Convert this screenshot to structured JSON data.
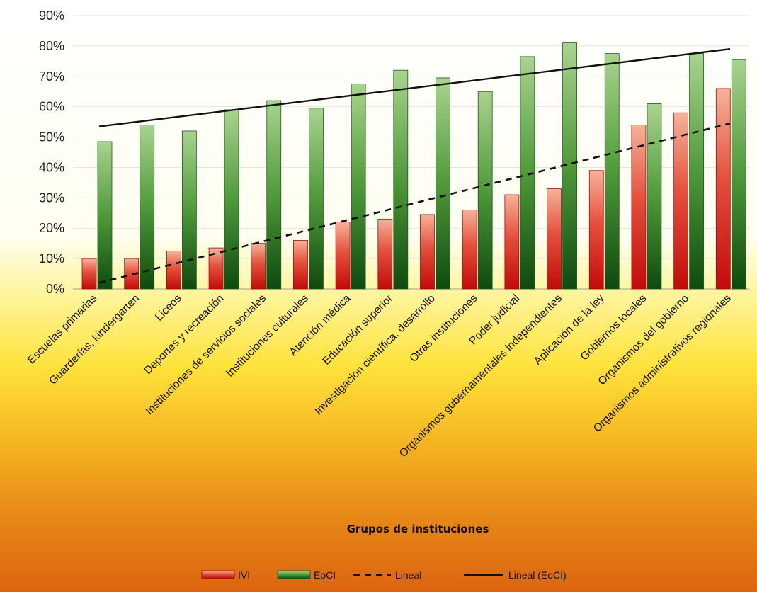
{
  "chart_data": {
    "type": "bar",
    "xlabel": "Grupos de instituciones",
    "ylabel": "",
    "ylim": [
      0,
      90
    ],
    "yticks": [
      0,
      10,
      20,
      30,
      40,
      50,
      60,
      70,
      80,
      90
    ],
    "ytick_suffix": "%",
    "grid": true,
    "legend_position": "bottom",
    "categories": [
      "Escuelas primarias",
      "Guarderías, kindergarten",
      "Liceos",
      "Deportes y recreación",
      "Instituciones de servicios sociales",
      "Instituciones culturales",
      "Atención médica",
      "Educación superior",
      "Investigación científica, desarrollo",
      "Otras instituciones",
      "Poder judicial",
      "Organismos gubernamentales independientes",
      "Aplicación de la ley",
      "Gobiernos locales",
      "Organismos del gobierno",
      "Organismos administrativos regionales"
    ],
    "series": [
      {
        "name": "IVI",
        "color": "#d42020",
        "values": [
          10,
          10,
          12.5,
          13.5,
          15,
          16,
          22,
          23,
          24.5,
          26,
          31,
          33,
          39,
          54,
          58,
          66
        ]
      },
      {
        "name": "EoCI",
        "color": "#3e8a2e",
        "values": [
          48.5,
          54,
          52,
          59,
          62,
          59.5,
          67.5,
          72,
          69.5,
          65,
          76.5,
          81,
          77.5,
          61,
          77.5,
          75.5
        ]
      }
    ],
    "trendlines": [
      {
        "name": "Lineal",
        "style": "dashed",
        "color": "#111111",
        "start": 2,
        "end": 54.5
      },
      {
        "name": "Lineal (EoCI)",
        "style": "solid",
        "color": "#111111",
        "start": 53.5,
        "end": 79
      }
    ],
    "legend": [
      "IVI",
      "EoCI",
      "Lineal",
      "Lineal (EoCI)"
    ]
  }
}
